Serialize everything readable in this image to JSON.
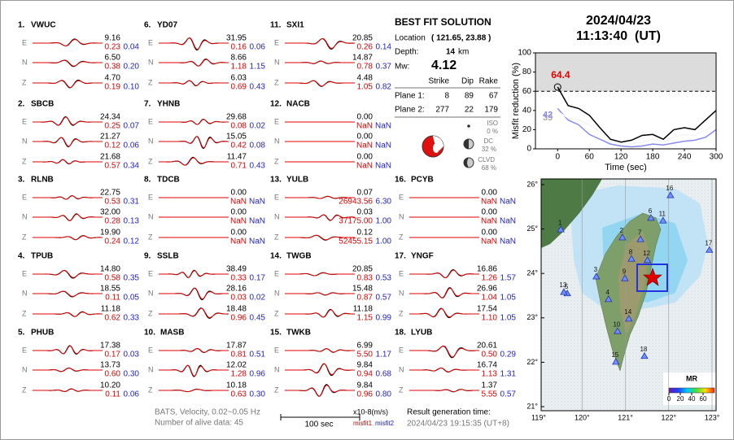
{
  "header": {
    "date": "2024/04/23",
    "time": "11:13:40  (UT)"
  },
  "stations": [
    {
      "number": "1.",
      "name": "VWUC",
      "components": [
        [
          "E",
          "9.16",
          "0.23",
          "0.04"
        ],
        [
          "N",
          "6.50",
          "0.38",
          "0.20"
        ],
        [
          "Z",
          "4.70",
          "0.19",
          "0.10"
        ]
      ]
    },
    {
      "number": "2.",
      "name": "SBCB",
      "components": [
        [
          "E",
          "24.34",
          "0.25",
          "0.07"
        ],
        [
          "N",
          "21.27",
          "0.12",
          "0.06"
        ],
        [
          "Z",
          "21.68",
          "0.57",
          "0.34"
        ]
      ]
    },
    {
      "number": "3.",
      "name": "RLNB",
      "components": [
        [
          "E",
          "22.75",
          "0.53",
          "0.31"
        ],
        [
          "N",
          "32.00",
          "0.28",
          "0.13"
        ],
        [
          "Z",
          "19.90",
          "0.24",
          "0.12"
        ]
      ]
    },
    {
      "number": "4.",
      "name": "TPUB",
      "components": [
        [
          "E",
          "14.80",
          "0.58",
          "0.35"
        ],
        [
          "N",
          "18.55",
          "0.11",
          "0.05"
        ],
        [
          "Z",
          "11.18",
          "0.62",
          "0.33"
        ]
      ]
    },
    {
      "number": "5.",
      "name": "PHUB",
      "components": [
        [
          "E",
          "17.38",
          "0.17",
          "0.03"
        ],
        [
          "N",
          "13.73",
          "0.60",
          "0.30"
        ],
        [
          "Z",
          "10.20",
          "0.11",
          "0.06"
        ]
      ]
    },
    {
      "number": "6.",
      "name": "YD07",
      "components": [
        [
          "E",
          "31.95",
          "0.16",
          "0.06"
        ],
        [
          "N",
          "8.66",
          "1.18",
          "1.15"
        ],
        [
          "Z",
          "6.03",
          "0.69",
          "0.43"
        ]
      ]
    },
    {
      "number": "7.",
      "name": "YHNB",
      "components": [
        [
          "E",
          "29.68",
          "0.08",
          "0.02"
        ],
        [
          "N",
          "15.05",
          "0.42",
          "0.08"
        ],
        [
          "Z",
          "11.47",
          "0.71",
          "0.43"
        ]
      ]
    },
    {
      "number": "8.",
      "name": "TDCB",
      "components": [
        [
          "E",
          "0.00",
          "NaN",
          "NaN"
        ],
        [
          "N",
          "0.00",
          "NaN",
          "NaN"
        ],
        [
          "Z",
          "0.00",
          "NaN",
          "NaN"
        ]
      ]
    },
    {
      "number": "9.",
      "name": "SSLB",
      "components": [
        [
          "E",
          "38.49",
          "0.33",
          "0.17"
        ],
        [
          "N",
          "28.16",
          "0.03",
          "0.02"
        ],
        [
          "Z",
          "18.48",
          "0.96",
          "0.45"
        ]
      ]
    },
    {
      "number": "10.",
      "name": "MASB",
      "components": [
        [
          "E",
          "17.87",
          "0.81",
          "0.51"
        ],
        [
          "N",
          "12.02",
          "1.28",
          "0.96"
        ],
        [
          "Z",
          "10.18",
          "0.63",
          "0.30"
        ]
      ]
    },
    {
      "number": "11.",
      "name": "SXI1",
      "components": [
        [
          "E",
          "20.85",
          "0.26",
          "0.14"
        ],
        [
          "N",
          "14.87",
          "0.78",
          "0.37"
        ],
        [
          "Z",
          "4.48",
          "1.05",
          "0.82"
        ]
      ]
    },
    {
      "number": "12.",
      "name": "NACB",
      "components": [
        [
          "E",
          "0.00",
          "NaN",
          "NaN"
        ],
        [
          "N",
          "0.00",
          "NaN",
          "NaN"
        ],
        [
          "Z",
          "0.00",
          "NaN",
          "NaN"
        ]
      ]
    },
    {
      "number": "13.",
      "name": "YULB",
      "components": [
        [
          "E",
          "0.07",
          "26943.56",
          "6.30"
        ],
        [
          "N",
          "0.03",
          "37175.00",
          "1.00"
        ],
        [
          "Z",
          "0.12",
          "52455.15",
          "1.00"
        ]
      ]
    },
    {
      "number": "14.",
      "name": "TWGB",
      "components": [
        [
          "E",
          "20.85",
          "0.83",
          "0.53"
        ],
        [
          "N",
          "15.48",
          "0.87",
          "0.57"
        ],
        [
          "Z",
          "11.18",
          "1.15",
          "0.99"
        ]
      ]
    },
    {
      "number": "15.",
      "name": "TWKB",
      "components": [
        [
          "E",
          "6.99",
          "5.50",
          "1.17"
        ],
        [
          "N",
          "9.84",
          "0.94",
          "0.68"
        ],
        [
          "Z",
          "9.84",
          "0.96",
          "0.80"
        ]
      ]
    },
    {
      "number": "16.",
      "name": "PCYB",
      "components": [
        [
          "E",
          "0.00",
          "NaN",
          "NaN"
        ],
        [
          "N",
          "0.00",
          "NaN",
          "NaN"
        ],
        [
          "Z",
          "0.00",
          "NaN",
          "NaN"
        ]
      ]
    },
    {
      "number": "17.",
      "name": "YNGF",
      "components": [
        [
          "E",
          "16.86",
          "1.26",
          "1.57"
        ],
        [
          "N",
          "26.96",
          "1.04",
          "1.05"
        ],
        [
          "Z",
          "17.54",
          "1.10",
          "1.05"
        ]
      ]
    },
    {
      "number": "18.",
      "name": "LYUB",
      "components": [
        [
          "E",
          "20.61",
          "0.50",
          "0.29"
        ],
        [
          "N",
          "16.74",
          "1.13",
          "1.31"
        ],
        [
          "Z",
          "1.37",
          "5.55",
          "0.57"
        ]
      ]
    }
  ],
  "solution": {
    "title": "BEST FIT SOLUTION",
    "location_label": "Location",
    "location": "( 121.65, 23.88 )",
    "depth_label": "Depth:",
    "depth": "14",
    "depth_unit": "km",
    "mw_label": "Mw:",
    "mw": "4.12",
    "table": {
      "header": [
        "Strike",
        "Dip",
        "Rake"
      ],
      "rows": [
        [
          "Plane 1:",
          "8",
          "89",
          "67"
        ],
        [
          "Plane 2:",
          "277",
          "22",
          "179"
        ]
      ]
    },
    "components": [
      [
        "ISO",
        "0 %"
      ],
      [
        "DC",
        "32 %"
      ],
      [
        "CLVD",
        "68 %"
      ]
    ]
  },
  "footer": {
    "filter": "BATS, Velocity, 0.02~0.05 Hz",
    "alive": "Number of alive data: 45",
    "scale_bar": "100 sec",
    "units": "x10-8(m/s)",
    "misfit1": "misfit1",
    "misfit2": "misfit2",
    "result_label": "Result generation time:",
    "result_time": "2024/04/23 19:15:35 (UT+8)"
  },
  "chart_data": {
    "type": "line",
    "y_label": "Misfit reduction (%)",
    "x_label": "Time (sec)",
    "x": [
      0,
      20,
      40,
      60,
      80,
      100,
      120,
      140,
      160,
      180,
      200,
      220,
      240,
      260,
      280,
      300
    ],
    "series": [
      {
        "color": "#000000",
        "values": [
          64.4,
          45,
          42,
          35,
          22,
          10,
          7,
          9,
          14,
          15,
          10,
          20,
          22,
          20,
          30,
          40
        ]
      },
      {
        "color": "#f4f4f4",
        "values": [
          39,
          32,
          30,
          25,
          18,
          10,
          6,
          5,
          7,
          10,
          8,
          12,
          15,
          14,
          20,
          25
        ]
      },
      {
        "color": "#8a8af0",
        "values": [
          42,
          30,
          25,
          15,
          10,
          5,
          3,
          2,
          3,
          5,
          4,
          6,
          8,
          9,
          12,
          20
        ]
      }
    ],
    "annotations": [
      {
        "text": "64.4",
        "series": 0,
        "color": "#e00000"
      },
      {
        "text": "39",
        "series": 1,
        "color": "#aaaaaa"
      },
      {
        "text": "42",
        "series": 2,
        "color": "#8a8af0"
      }
    ],
    "threshold": 60,
    "xlim": [
      -42,
      300
    ],
    "ylim": [
      0,
      100
    ],
    "xticks": [
      0,
      60,
      120,
      180,
      240,
      300
    ],
    "yticks": [
      0,
      20,
      40,
      60,
      80,
      100
    ]
  },
  "map": {
    "xlim": [
      119,
      123
    ],
    "ylim": [
      21,
      26
    ],
    "xticks": [
      {
        "value": 119,
        "label": "119°"
      },
      {
        "value": 120,
        "label": "120°"
      },
      {
        "value": 121,
        "label": "121°"
      },
      {
        "value": 122,
        "label": "122°"
      },
      {
        "value": 123,
        "label": "123°"
      }
    ],
    "yticks": [
      {
        "value": 21,
        "label": "21°"
      },
      {
        "value": 22,
        "label": "22°"
      },
      {
        "value": 23,
        "label": "23°"
      },
      {
        "value": 24,
        "label": "24°"
      },
      {
        "value": 25,
        "label": "25°"
      },
      {
        "value": 26,
        "label": "26°"
      }
    ],
    "stations": [
      {
        "label": "1",
        "lon": 119.51,
        "lat": 24.99
      },
      {
        "label": "2",
        "lon": 120.93,
        "lat": 24.81
      },
      {
        "label": "3",
        "lon": 120.33,
        "lat": 23.93
      },
      {
        "label": "4",
        "lon": 120.61,
        "lat": 23.42
      },
      {
        "label": "5",
        "lon": 119.66,
        "lat": 23.55
      },
      {
        "label": "6",
        "lon": 121.59,
        "lat": 25.25
      },
      {
        "label": "7",
        "lon": 121.35,
        "lat": 24.77
      },
      {
        "label": "8",
        "lon": 121.14,
        "lat": 24.33
      },
      {
        "label": "9",
        "lon": 120.99,
        "lat": 23.89
      },
      {
        "label": "10",
        "lon": 120.82,
        "lat": 22.7
      },
      {
        "label": "11",
        "lon": 121.87,
        "lat": 25.19
      },
      {
        "label": "12",
        "lon": 121.51,
        "lat": 24.3
      },
      {
        "label": "13",
        "lon": 119.58,
        "lat": 23.58
      },
      {
        "label": "14",
        "lon": 121.08,
        "lat": 22.98
      },
      {
        "label": "15",
        "lon": 120.78,
        "lat": 22.01
      },
      {
        "label": "16",
        "lon": 122.04,
        "lat": 25.76
      },
      {
        "label": "17",
        "lon": 122.94,
        "lat": 24.53
      },
      {
        "label": "18",
        "lon": 121.44,
        "lat": 22.14
      }
    ],
    "colorbar": {
      "title": "MR",
      "range": [
        0,
        80
      ],
      "ticks": [
        0,
        20,
        40,
        60
      ]
    }
  }
}
